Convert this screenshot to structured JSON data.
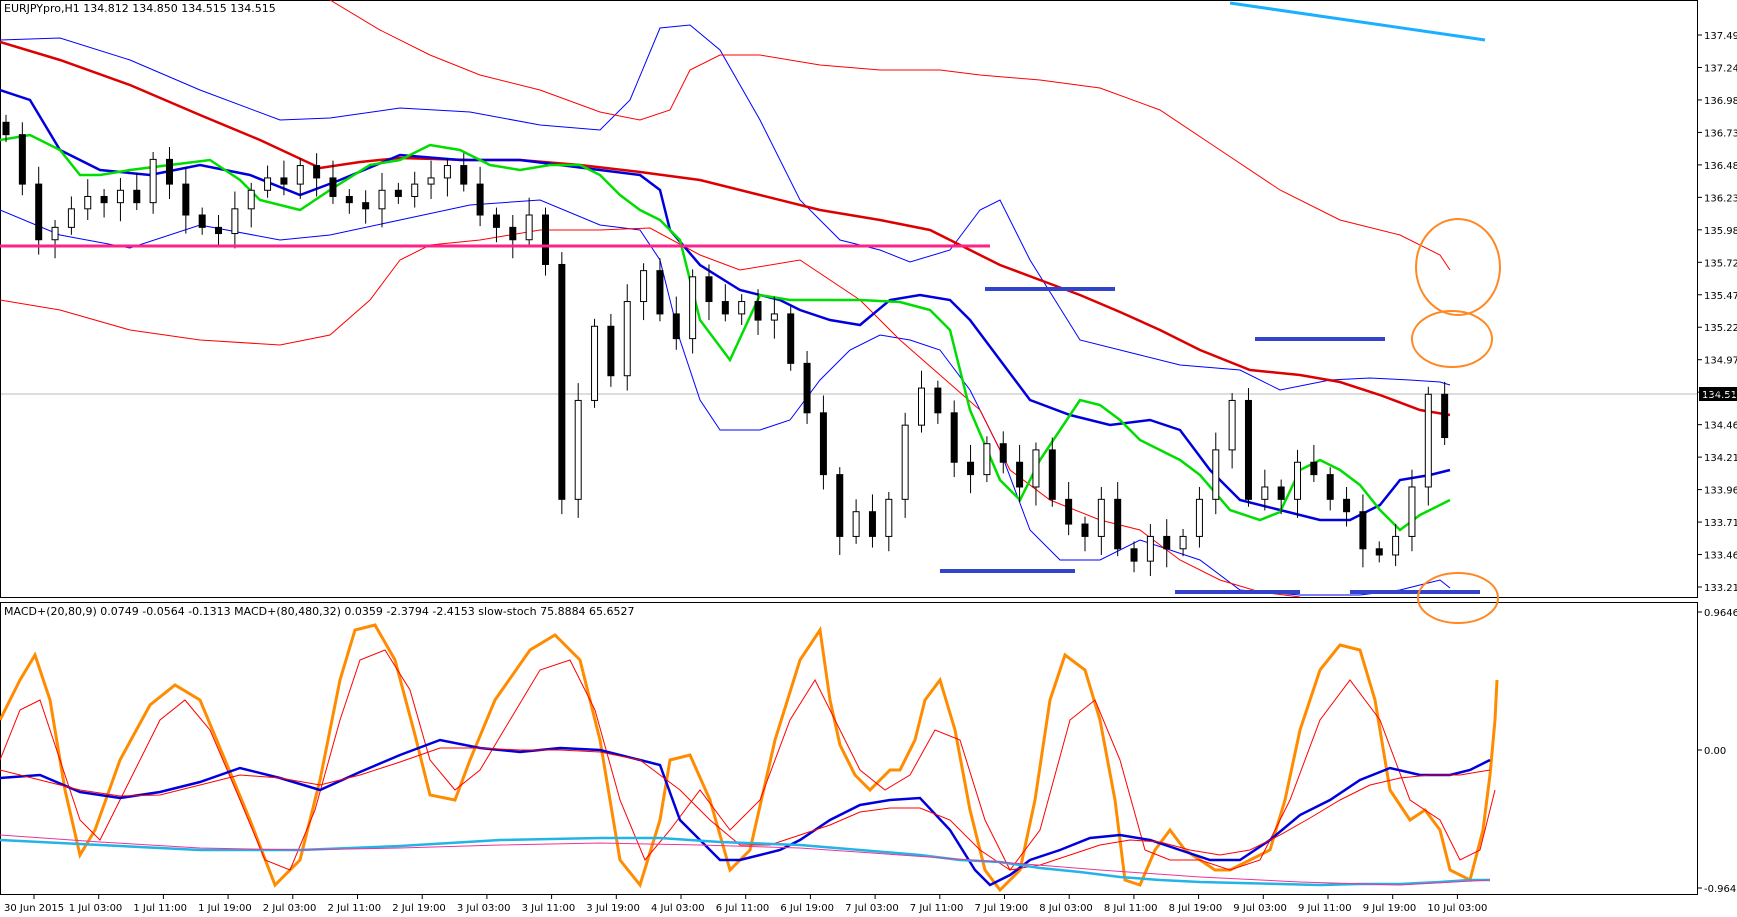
{
  "main": {
    "info": "EURJPYpro,H1  134.812 134.850 134.515 134.515",
    "price_min": 133.21,
    "price_max": 137.74,
    "y_ticks": [
      "137.490",
      "137.240",
      "136.985",
      "136.735",
      "136.485",
      "136.230",
      "135.980",
      "135.725",
      "135.475",
      "135.225",
      "134.970",
      "134.720",
      "134.465",
      "134.215",
      "133.965",
      "133.710",
      "133.460",
      "133.210"
    ],
    "current_price": "134.515",
    "bb_color": "#0000ff",
    "bb_outer_color": "#ff0000",
    "ma_slow_color": "#dd0000",
    "ma_mid_color": "#0000dd",
    "ma_fast_color": "#00dd00",
    "support_color": "#ff2288",
    "marker_color": "#3344cc",
    "circle_color": "#ff8822"
  },
  "sub": {
    "info": "MACD+(20,80,9) 0.0749 -0.0564 -0.1313  MACD+(80,480,32) 0.0359 -2.3794 -2.4153  slow-stoch 75.8884 65.6527",
    "y_ticks": [
      "0.9646",
      "0.00",
      "-0.9646"
    ]
  },
  "x_labels": [
    "30 Jun 2015",
    "1 Jul 03:00",
    "1 Jul 11:00",
    "1 Jul 19:00",
    "2 Jul 03:00",
    "2 Jul 11:00",
    "2 Jul 19:00",
    "3 Jul 03:00",
    "3 Jul 11:00",
    "3 Jul 19:00",
    "4 Jul 03:00",
    "6 Jul 11:00",
    "6 Jul 19:00",
    "7 Jul 03:00",
    "7 Jul 11:00",
    "7 Jul 19:00",
    "8 Jul 03:00",
    "8 Jul 11:00",
    "8 Jul 19:00",
    "9 Jul 03:00",
    "9 Jul 11:00",
    "9 Jul 19:00",
    "10 Jul 03:00"
  ],
  "chart_data": {
    "type": "candlestick",
    "symbol": "EURJPYpro",
    "timeframe": "H1",
    "close_series": [
      136.95,
      136.55,
      136.1,
      136.2,
      136.35,
      136.45,
      136.4,
      136.5,
      136.4,
      136.75,
      136.55,
      136.3,
      136.2,
      136.15,
      136.35,
      136.5,
      136.6,
      136.55,
      136.7,
      136.6,
      136.45,
      136.4,
      136.35,
      136.5,
      136.45,
      136.55,
      136.6,
      136.7,
      136.55,
      136.3,
      136.2,
      136.1,
      136.3,
      135.9,
      134.0,
      134.8,
      135.4,
      135.0,
      135.6,
      135.85,
      135.5,
      135.3,
      135.8,
      135.6,
      135.5,
      135.6,
      135.45,
      135.5,
      135.1,
      134.7,
      134.2,
      133.7,
      133.9,
      133.7,
      134.0,
      134.6,
      134.9,
      134.7,
      134.3,
      134.2,
      134.45,
      134.3,
      134.1,
      134.4,
      134.0,
      133.8,
      133.7,
      134.0,
      133.6,
      133.5,
      133.7,
      133.6,
      133.7,
      134.0,
      134.4,
      134.8,
      134.0,
      134.1,
      134.0,
      134.3,
      134.2,
      134.0,
      133.9,
      133.6,
      133.55,
      133.7,
      134.1,
      134.85,
      134.5
    ],
    "y_range": [
      133.21,
      137.74
    ],
    "sub_y_range": [
      -0.9646,
      0.9646
    ]
  }
}
